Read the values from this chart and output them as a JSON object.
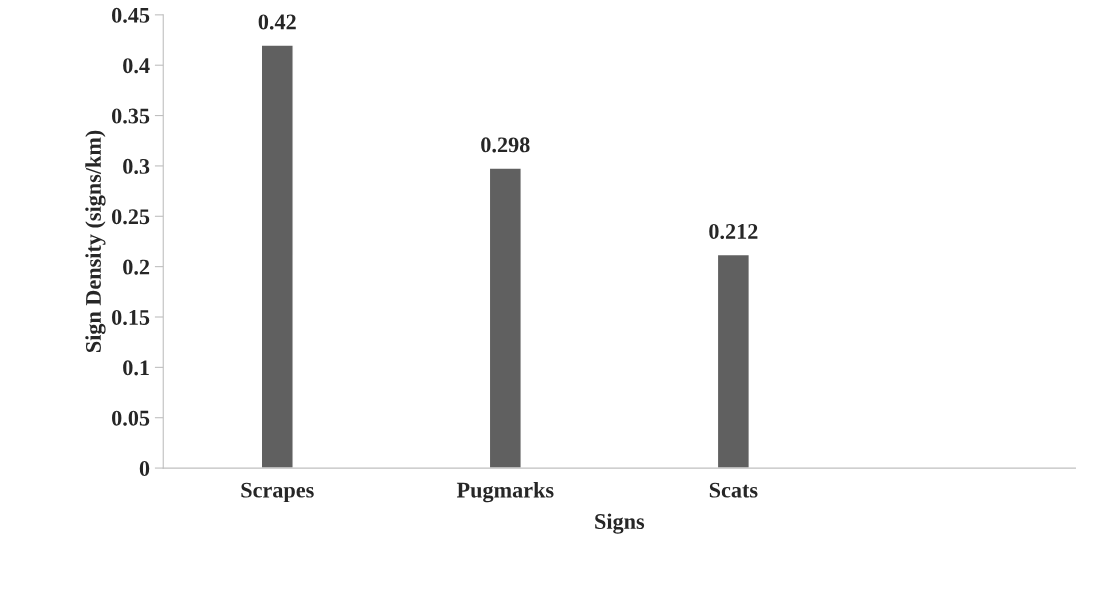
{
  "chart_data": {
    "type": "bar",
    "xlabel": "Signs",
    "ylabel": "Sign Density (signs/km)",
    "categories": [
      "Scrapes",
      "Pugmarks",
      "Scats",
      null
    ],
    "values": [
      0.42,
      0.298,
      0.212,
      null
    ],
    "color": "#606060",
    "ylim": [
      0,
      0.45
    ],
    "yticks": [
      0,
      0.05,
      0.1,
      0.15,
      0.2,
      0.25,
      0.3,
      0.35,
      0.4,
      0.45
    ],
    "data_labels": true,
    "grid": false,
    "legend": false
  }
}
